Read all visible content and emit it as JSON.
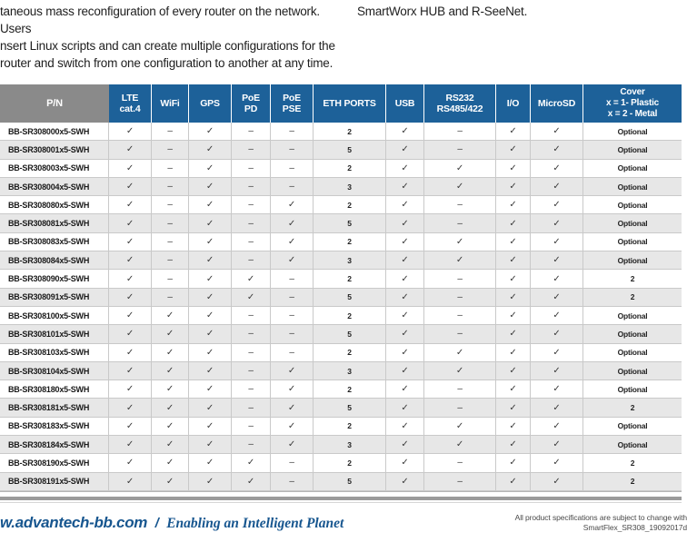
{
  "intro": {
    "left_lines": [
      "taneous mass reconfiguration of every router on the network. Users",
      "nsert Linux scripts and can create multiple configurations for the",
      "router and switch from one configuration to another at any time."
    ],
    "right_line": "SmartWorx HUB and R-SeeNet."
  },
  "table": {
    "columns": [
      {
        "id": "pn",
        "label": "P/N"
      },
      {
        "id": "lte",
        "label": "LTE\ncat.4"
      },
      {
        "id": "wifi",
        "label": "WiFi"
      },
      {
        "id": "gps",
        "label": "GPS"
      },
      {
        "id": "poe_pd",
        "label": "PoE\nPD"
      },
      {
        "id": "poe_pse",
        "label": "PoE\nPSE"
      },
      {
        "id": "eth_ports",
        "label": "ETH PORTS"
      },
      {
        "id": "usb",
        "label": "USB"
      },
      {
        "id": "rs232",
        "label": "RS232\nRS485/422"
      },
      {
        "id": "io",
        "label": "I/O"
      },
      {
        "id": "microsd",
        "label": "MicroSD"
      },
      {
        "id": "cover",
        "label": "Cover\nx = 1- Plastic\nx = 2 - Metal"
      }
    ],
    "rows": [
      {
        "pn": "BB-SR308000x5-SWH",
        "cells": [
          "✓",
          "–",
          "✓",
          "–",
          "–",
          "2",
          "✓",
          "–",
          "✓",
          "✓",
          "Optional"
        ]
      },
      {
        "pn": "BB-SR308001x5-SWH",
        "cells": [
          "✓",
          "–",
          "✓",
          "–",
          "–",
          "5",
          "✓",
          "–",
          "✓",
          "✓",
          "Optional"
        ]
      },
      {
        "pn": "BB-SR308003x5-SWH",
        "cells": [
          "✓",
          "–",
          "✓",
          "–",
          "–",
          "2",
          "✓",
          "✓",
          "✓",
          "✓",
          "Optional"
        ]
      },
      {
        "pn": "BB-SR308004x5-SWH",
        "cells": [
          "✓",
          "–",
          "✓",
          "–",
          "–",
          "3",
          "✓",
          "✓",
          "✓",
          "✓",
          "Optional"
        ]
      },
      {
        "pn": "BB-SR308080x5-SWH",
        "cells": [
          "✓",
          "–",
          "✓",
          "–",
          "✓",
          "2",
          "✓",
          "–",
          "✓",
          "✓",
          "Optional"
        ]
      },
      {
        "pn": "BB-SR308081x5-SWH",
        "cells": [
          "✓",
          "–",
          "✓",
          "–",
          "✓",
          "5",
          "✓",
          "–",
          "✓",
          "✓",
          "Optional"
        ]
      },
      {
        "pn": "BB-SR308083x5-SWH",
        "cells": [
          "✓",
          "–",
          "✓",
          "–",
          "✓",
          "2",
          "✓",
          "✓",
          "✓",
          "✓",
          "Optional"
        ]
      },
      {
        "pn": "BB-SR308084x5-SWH",
        "cells": [
          "✓",
          "–",
          "✓",
          "–",
          "✓",
          "3",
          "✓",
          "✓",
          "✓",
          "✓",
          "Optional"
        ]
      },
      {
        "pn": "BB-SR308090x5-SWH",
        "cells": [
          "✓",
          "–",
          "✓",
          "✓",
          "–",
          "2",
          "✓",
          "–",
          "✓",
          "✓",
          "2"
        ]
      },
      {
        "pn": "BB-SR308091x5-SWH",
        "cells": [
          "✓",
          "–",
          "✓",
          "✓",
          "–",
          "5",
          "✓",
          "–",
          "✓",
          "✓",
          "2"
        ]
      },
      {
        "pn": "BB-SR308100x5-SWH",
        "cells": [
          "✓",
          "✓",
          "✓",
          "–",
          "–",
          "2",
          "✓",
          "–",
          "✓",
          "✓",
          "Optional"
        ]
      },
      {
        "pn": "BB-SR308101x5-SWH",
        "cells": [
          "✓",
          "✓",
          "✓",
          "–",
          "–",
          "5",
          "✓",
          "–",
          "✓",
          "✓",
          "Optional"
        ]
      },
      {
        "pn": "BB-SR308103x5-SWH",
        "cells": [
          "✓",
          "✓",
          "✓",
          "–",
          "–",
          "2",
          "✓",
          "✓",
          "✓",
          "✓",
          "Optional"
        ]
      },
      {
        "pn": "BB-SR308104x5-SWH",
        "cells": [
          "✓",
          "✓",
          "✓",
          "–",
          "✓",
          "3",
          "✓",
          "✓",
          "✓",
          "✓",
          "Optional"
        ]
      },
      {
        "pn": "BB-SR308180x5-SWH",
        "cells": [
          "✓",
          "✓",
          "✓",
          "–",
          "✓",
          "2",
          "✓",
          "–",
          "✓",
          "✓",
          "Optional"
        ]
      },
      {
        "pn": "BB-SR308181x5-SWH",
        "cells": [
          "✓",
          "✓",
          "✓",
          "–",
          "✓",
          "5",
          "✓",
          "–",
          "✓",
          "✓",
          "2"
        ]
      },
      {
        "pn": "BB-SR308183x5-SWH",
        "cells": [
          "✓",
          "✓",
          "✓",
          "–",
          "✓",
          "2",
          "✓",
          "✓",
          "✓",
          "✓",
          "Optional"
        ]
      },
      {
        "pn": "BB-SR308184x5-SWH",
        "cells": [
          "✓",
          "✓",
          "✓",
          "–",
          "✓",
          "3",
          "✓",
          "✓",
          "✓",
          "✓",
          "Optional"
        ]
      },
      {
        "pn": "BB-SR308190x5-SWH",
        "cells": [
          "✓",
          "✓",
          "✓",
          "✓",
          "–",
          "2",
          "✓",
          "–",
          "✓",
          "✓",
          "2"
        ]
      },
      {
        "pn": "BB-SR308191x5-SWH",
        "cells": [
          "✓",
          "✓",
          "✓",
          "✓",
          "–",
          "5",
          "✓",
          "–",
          "✓",
          "✓",
          "2"
        ]
      }
    ]
  },
  "footer": {
    "website": "w.advantech-bb.com",
    "separator": "/",
    "tagline": "Enabling an Intelligent Planet",
    "note_line1": "All product specifications are subject to change with",
    "note_line2": "SmartFlex_SR308_19092017d"
  },
  "colors": {
    "header_blue": "#1D6199",
    "header_gray": "#8A8A8A",
    "alt_row_gray": "#E7E7E7",
    "border_gray": "#C9C9C9",
    "footer_blue": "#17568F",
    "divider_gray": "#9B9B9B"
  }
}
